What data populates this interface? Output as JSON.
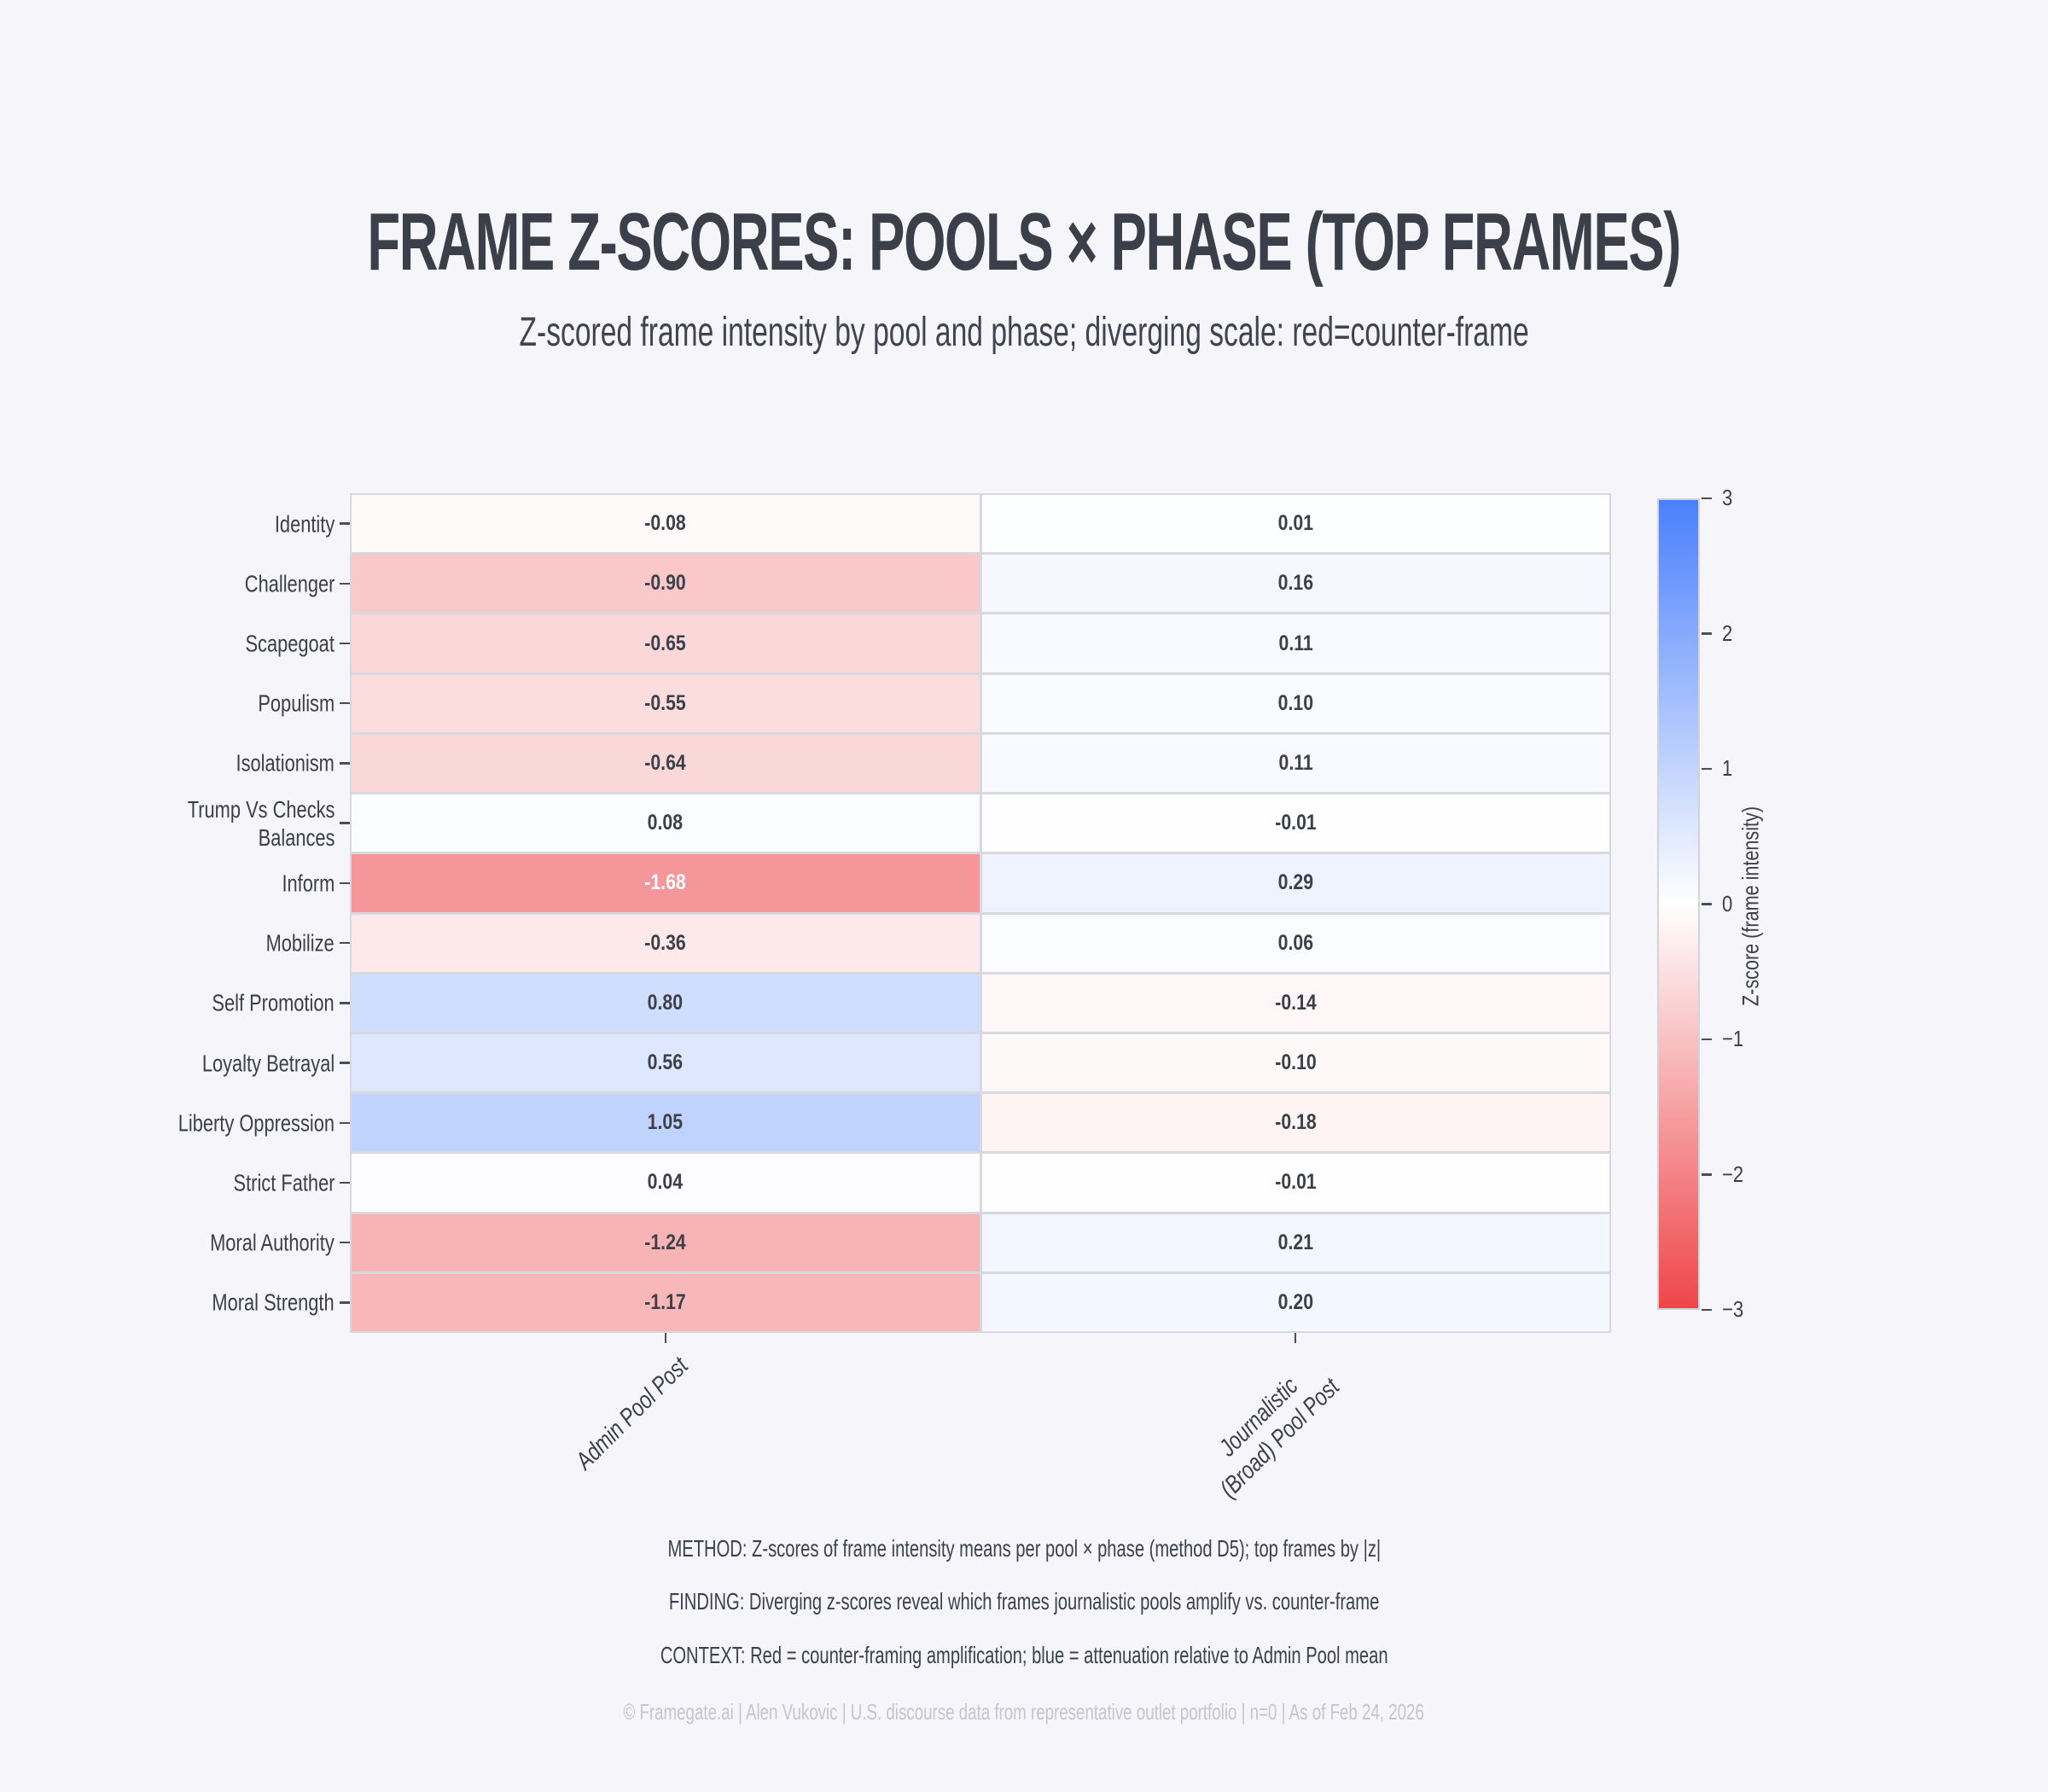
{
  "title": "FRAME Z-SCORES: POOLS × PHASE (TOP FRAMES)",
  "subtitle": "Z-scored frame intensity by pool and phase; diverging scale: red=counter-frame",
  "chart_data": {
    "type": "heatmap",
    "rows": [
      "Identity",
      "Challenger",
      "Scapegoat",
      "Populism",
      "Isolationism",
      "Trump Vs Checks\nBalances",
      "Inform",
      "Mobilize",
      "Self Promotion",
      "Loyalty Betrayal",
      "Liberty Oppression",
      "Strict Father",
      "Moral Authority",
      "Moral Strength"
    ],
    "columns": [
      "Admin Pool Post",
      "Journalistic\n(Broad) Pool Post"
    ],
    "values": [
      [
        -0.08,
        0.01
      ],
      [
        -0.9,
        0.16
      ],
      [
        -0.65,
        0.11
      ],
      [
        -0.55,
        0.1
      ],
      [
        -0.64,
        0.11
      ],
      [
        0.08,
        -0.01
      ],
      [
        -1.68,
        0.29
      ],
      [
        -0.36,
        0.06
      ],
      [
        0.8,
        -0.14
      ],
      [
        0.56,
        -0.1
      ],
      [
        1.05,
        -0.18
      ],
      [
        0.04,
        -0.01
      ],
      [
        -1.24,
        0.21
      ],
      [
        -1.17,
        0.2
      ]
    ],
    "value_range": [
      -3,
      3
    ],
    "annotation_decimals": 2,
    "colorbar": {
      "label": "Z-score (frame intensity)",
      "ticks": [
        3,
        2,
        1,
        0,
        -1,
        -2,
        -3
      ],
      "min": -3,
      "max": 3
    },
    "colors": {
      "positive_end": "#4a80fc",
      "center": "#ffffff",
      "negative_end": "#ee464a",
      "grid_line": "#d8d8e0",
      "cell_text_dark": "#3b4049",
      "cell_text_light": "#ffffff",
      "background": "#f6f5fa"
    },
    "legend_position": "right",
    "grid": "off"
  },
  "footnotes": [
    "METHOD: Z-scores of frame intensity means per pool × phase (method D5); top frames by |z|",
    "FINDING: Diverging z-scores reveal which frames journalistic pools amplify vs. counter-frame",
    "CONTEXT: Red = counter-framing amplification; blue = attenuation relative to Admin Pool mean"
  ],
  "copyright": "© Framegate.ai | Alen Vukovic | U.S. discourse data from representative outlet portfolio | n=0 | As of Feb 24, 2026"
}
